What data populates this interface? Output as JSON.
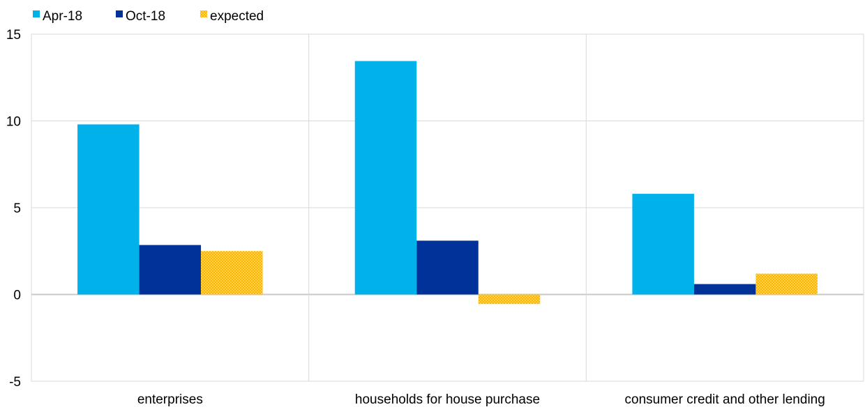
{
  "chart_data": {
    "type": "bar",
    "title": "",
    "xlabel": "",
    "ylabel": "",
    "ylim": [
      -5,
      15
    ],
    "yticks": [
      15,
      10,
      5,
      0,
      -5
    ],
    "grid": true,
    "legend_position": "top-left",
    "categories": [
      "enterprises",
      "households for house purchase",
      "consumer credit and other lending"
    ],
    "series": [
      {
        "name": "Apr-18",
        "color": "#00B1EA",
        "values": [
          9.8,
          13.45,
          5.8
        ]
      },
      {
        "name": "Oct-18",
        "color": "#003299",
        "values": [
          2.85,
          3.1,
          0.6
        ]
      },
      {
        "name": "expected",
        "color": "#FFB400",
        "pattern": "checker",
        "values": [
          2.5,
          -0.55,
          1.2
        ]
      }
    ]
  }
}
